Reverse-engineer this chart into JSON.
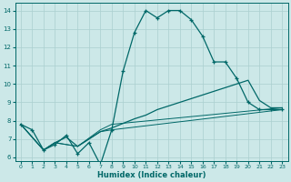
{
  "xlabel": "Humidex (Indice chaleur)",
  "xlim": [
    -0.5,
    23.5
  ],
  "ylim": [
    5.8,
    14.4
  ],
  "xticks": [
    0,
    1,
    2,
    3,
    4,
    5,
    6,
    7,
    8,
    9,
    10,
    11,
    12,
    13,
    14,
    15,
    16,
    17,
    18,
    19,
    20,
    21,
    22,
    23
  ],
  "yticks": [
    6,
    7,
    8,
    9,
    10,
    11,
    12,
    13,
    14
  ],
  "bg_color": "#cce8e8",
  "line_color": "#006868",
  "grid_color": "#aacfcf",
  "line1_x": [
    0,
    1,
    2,
    3,
    4,
    5,
    6,
    7,
    8,
    9,
    10,
    11,
    12,
    13,
    14,
    15,
    16,
    17,
    18,
    19,
    20,
    21,
    22,
    23
  ],
  "line1_y": [
    7.8,
    7.5,
    6.4,
    6.7,
    7.2,
    6.2,
    6.8,
    5.6,
    7.5,
    10.7,
    12.8,
    14.0,
    13.6,
    14.0,
    14.0,
    13.5,
    12.6,
    11.2,
    11.2,
    10.3,
    9.0,
    8.6,
    8.6,
    8.6
  ],
  "line2_x": [
    0,
    2,
    3,
    4,
    5,
    6,
    7,
    8,
    10,
    11,
    12,
    13,
    14,
    15,
    16,
    17,
    18,
    19,
    20,
    21,
    22,
    23
  ],
  "line2_y": [
    7.8,
    6.4,
    6.8,
    7.1,
    6.6,
    7.0,
    7.4,
    7.6,
    8.1,
    8.3,
    8.6,
    8.8,
    9.0,
    9.2,
    9.4,
    9.6,
    9.8,
    10.0,
    10.2,
    9.1,
    8.7,
    8.7
  ],
  "line3_x": [
    0,
    2,
    3,
    5,
    7,
    8,
    23
  ],
  "line3_y": [
    7.8,
    6.4,
    6.8,
    6.6,
    7.4,
    7.5,
    8.6
  ],
  "line4_x": [
    0,
    2,
    3,
    5,
    7,
    8,
    23
  ],
  "line4_y": [
    7.8,
    6.4,
    6.8,
    6.6,
    7.5,
    7.8,
    8.7
  ]
}
